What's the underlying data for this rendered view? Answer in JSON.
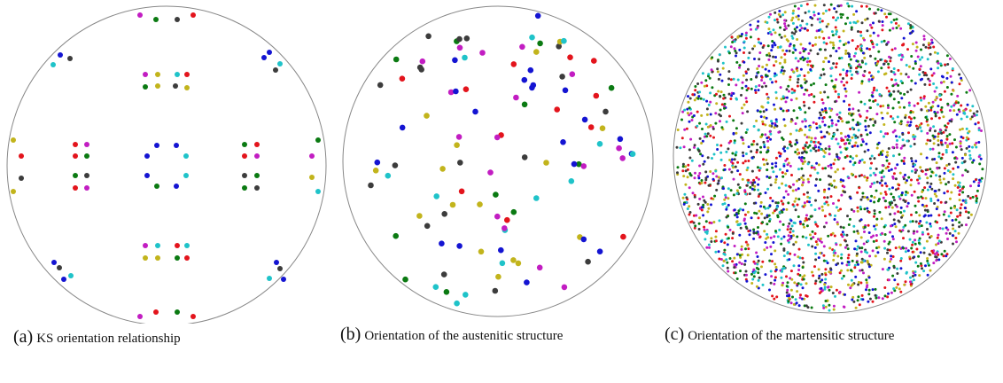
{
  "captions": [
    {
      "label": "(a)",
      "text": "KS orientation relationship"
    },
    {
      "label": "(b)",
      "text": "Orientation of the austenitic structure"
    },
    {
      "label": "(c)",
      "text": "Orientation of the martensitic structure"
    }
  ]
}
